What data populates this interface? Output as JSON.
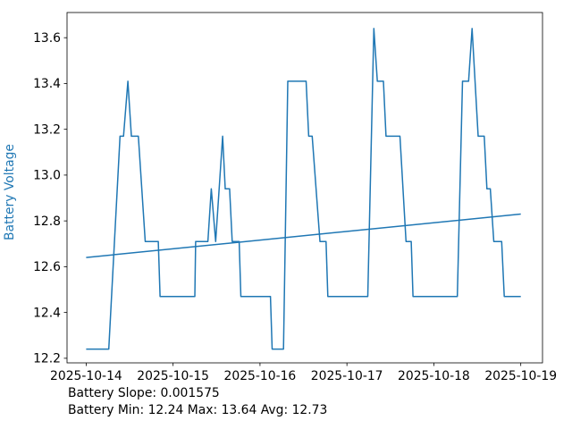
{
  "chart_data": {
    "type": "line",
    "title": "",
    "xlabel": "",
    "ylabel": "Battery Voltage",
    "x_unit": "days since 2025-10-14 00:00",
    "xlim": [
      -0.22,
      5.25
    ],
    "ylim": [
      12.18,
      13.71
    ],
    "grid": false,
    "legend": "none",
    "xticks": [
      {
        "value": 0,
        "label": "2025-10-14"
      },
      {
        "value": 1,
        "label": "2025-10-15"
      },
      {
        "value": 2,
        "label": "2025-10-16"
      },
      {
        "value": 3,
        "label": "2025-10-17"
      },
      {
        "value": 4,
        "label": "2025-10-18"
      },
      {
        "value": 5,
        "label": "2025-10-19"
      }
    ],
    "yticks": [
      {
        "value": 12.2,
        "label": "12.2"
      },
      {
        "value": 12.4,
        "label": "12.4"
      },
      {
        "value": 12.6,
        "label": "12.6"
      },
      {
        "value": 12.8,
        "label": "12.8"
      },
      {
        "value": 13.0,
        "label": "13.0"
      },
      {
        "value": 13.2,
        "label": "13.2"
      },
      {
        "value": 13.4,
        "label": "13.4"
      },
      {
        "value": 13.6,
        "label": "13.6"
      }
    ],
    "colors": {
      "line": "#1f77b4",
      "trend": "#1f77b4",
      "ylabel": "#1f77b4",
      "axis": "#000000",
      "background": "#ffffff"
    },
    "series": [
      {
        "name": "battery-voltage",
        "points": [
          [
            0.0,
            12.24
          ],
          [
            0.26,
            12.24
          ],
          [
            0.39,
            13.17
          ],
          [
            0.43,
            13.17
          ],
          [
            0.48,
            13.41
          ],
          [
            0.52,
            13.17
          ],
          [
            0.6,
            13.17
          ],
          [
            0.68,
            12.71
          ],
          [
            0.83,
            12.71
          ],
          [
            0.85,
            12.47
          ],
          [
            1.25,
            12.47
          ],
          [
            1.26,
            12.71
          ],
          [
            1.4,
            12.71
          ],
          [
            1.44,
            12.94
          ],
          [
            1.49,
            12.71
          ],
          [
            1.57,
            13.17
          ],
          [
            1.6,
            12.94
          ],
          [
            1.65,
            12.94
          ],
          [
            1.68,
            12.71
          ],
          [
            1.76,
            12.71
          ],
          [
            1.78,
            12.47
          ],
          [
            2.12,
            12.47
          ],
          [
            2.14,
            12.24
          ],
          [
            2.27,
            12.24
          ],
          [
            2.32,
            13.41
          ],
          [
            2.53,
            13.41
          ],
          [
            2.56,
            13.17
          ],
          [
            2.6,
            13.17
          ],
          [
            2.69,
            12.71
          ],
          [
            2.76,
            12.71
          ],
          [
            2.78,
            12.47
          ],
          [
            3.24,
            12.47
          ],
          [
            3.31,
            13.64
          ],
          [
            3.35,
            13.41
          ],
          [
            3.42,
            13.41
          ],
          [
            3.45,
            13.17
          ],
          [
            3.61,
            13.17
          ],
          [
            3.68,
            12.71
          ],
          [
            3.74,
            12.71
          ],
          [
            3.76,
            12.47
          ],
          [
            4.27,
            12.47
          ],
          [
            4.33,
            13.41
          ],
          [
            4.4,
            13.41
          ],
          [
            4.44,
            13.64
          ],
          [
            4.51,
            13.17
          ],
          [
            4.58,
            13.17
          ],
          [
            4.61,
            12.94
          ],
          [
            4.65,
            12.94
          ],
          [
            4.69,
            12.71
          ],
          [
            4.78,
            12.71
          ],
          [
            4.81,
            12.47
          ],
          [
            5.0,
            12.47
          ]
        ]
      },
      {
        "name": "trend-line",
        "points": [
          [
            0.0,
            12.64
          ],
          [
            5.0,
            12.83
          ]
        ]
      }
    ],
    "annotations": [
      "Battery Slope: 0.001575",
      "Battery Min: 12.24 Max: 13.64 Avg: 12.73"
    ],
    "stats": {
      "slope": "0.001575",
      "min": "12.24",
      "max": "13.64",
      "avg": "12.73"
    }
  }
}
